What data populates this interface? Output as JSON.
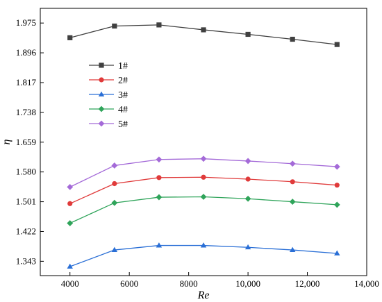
{
  "chart_data": {
    "type": "line",
    "xlabel": "Re",
    "ylabel": "η",
    "xlim": [
      3000,
      14000
    ],
    "ylim": [
      1.305,
      2.014
    ],
    "x_ticks": [
      4000,
      6000,
      8000,
      10000,
      12000,
      14000
    ],
    "x_tick_labels": [
      "4000",
      "6000",
      "8000",
      "10,000",
      "12,000",
      "14,000"
    ],
    "y_ticks": [
      1.343,
      1.422,
      1.501,
      1.58,
      1.659,
      1.738,
      1.817,
      1.896,
      1.975
    ],
    "y_tick_labels": [
      "1.343",
      "1.422",
      "1.501",
      "1.580",
      "1.659",
      "1.738",
      "1.817",
      "1.896",
      "1.975"
    ],
    "grid": false,
    "legend_position": "upper-left",
    "x": [
      4000,
      5500,
      7000,
      8500,
      10000,
      11500,
      13000
    ],
    "series": [
      {
        "name": "1#",
        "color": "#404040",
        "marker": "square",
        "values": [
          1.936,
          1.967,
          1.97,
          1.957,
          1.945,
          1.932,
          1.918
        ]
      },
      {
        "name": "2#",
        "color": "#e03a3a",
        "marker": "circle",
        "values": [
          1.496,
          1.549,
          1.565,
          1.566,
          1.561,
          1.554,
          1.545
        ]
      },
      {
        "name": "3#",
        "color": "#2a6fd6",
        "marker": "triangle",
        "values": [
          1.329,
          1.373,
          1.385,
          1.385,
          1.38,
          1.373,
          1.364
        ]
      },
      {
        "name": "4#",
        "color": "#2fa45a",
        "marker": "diamond",
        "values": [
          1.444,
          1.498,
          1.513,
          1.514,
          1.509,
          1.501,
          1.493
        ]
      },
      {
        "name": "5#",
        "color": "#a46ad8",
        "marker": "diamond",
        "values": [
          1.54,
          1.597,
          1.613,
          1.615,
          1.609,
          1.602,
          1.594
        ]
      }
    ]
  }
}
